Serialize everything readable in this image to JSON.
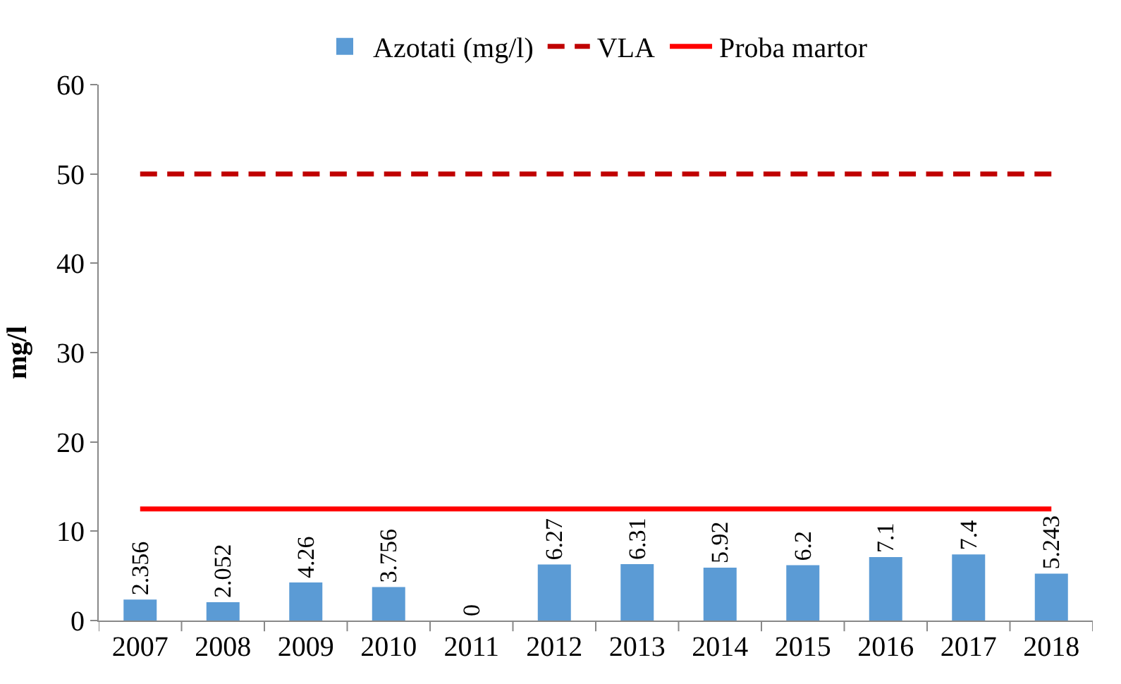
{
  "chart_data": {
    "type": "bar",
    "ylabel": "mg/l",
    "categories": [
      "2007",
      "2008",
      "2009",
      "2010",
      "2011",
      "2012",
      "2013",
      "2014",
      "2015",
      "2016",
      "2017",
      "2018"
    ],
    "series": [
      {
        "name": "Azotati (mg/l)",
        "color": "#5b9bd5",
        "values": [
          2.356,
          2.052,
          4.26,
          3.756,
          0,
          6.27,
          6.31,
          5.92,
          6.2,
          7.1,
          7.4,
          5.243
        ],
        "value_labels": [
          "2.356",
          "2.052",
          "4.26",
          "3.756",
          "0",
          "6.27",
          "6.31",
          "5.92",
          "6.2",
          "7.1",
          "7.4",
          "5.243"
        ]
      },
      {
        "name": "VLA",
        "type": "line",
        "color": "#c00000",
        "line_style": "dashed",
        "values": [
          50,
          50,
          50,
          50,
          50,
          50,
          50,
          50,
          50,
          50,
          50,
          50
        ]
      },
      {
        "name": "Proba martor",
        "type": "line",
        "color": "#ff0000",
        "line_style": "solid",
        "values": [
          12.5,
          12.5,
          12.5,
          12.5,
          12.5,
          12.5,
          12.5,
          12.5,
          12.5,
          12.5,
          12.5,
          12.5
        ]
      }
    ],
    "ylim": [
      0,
      60
    ],
    "yticks": [
      0,
      10,
      20,
      30,
      40,
      50,
      60
    ],
    "legend": "top"
  }
}
